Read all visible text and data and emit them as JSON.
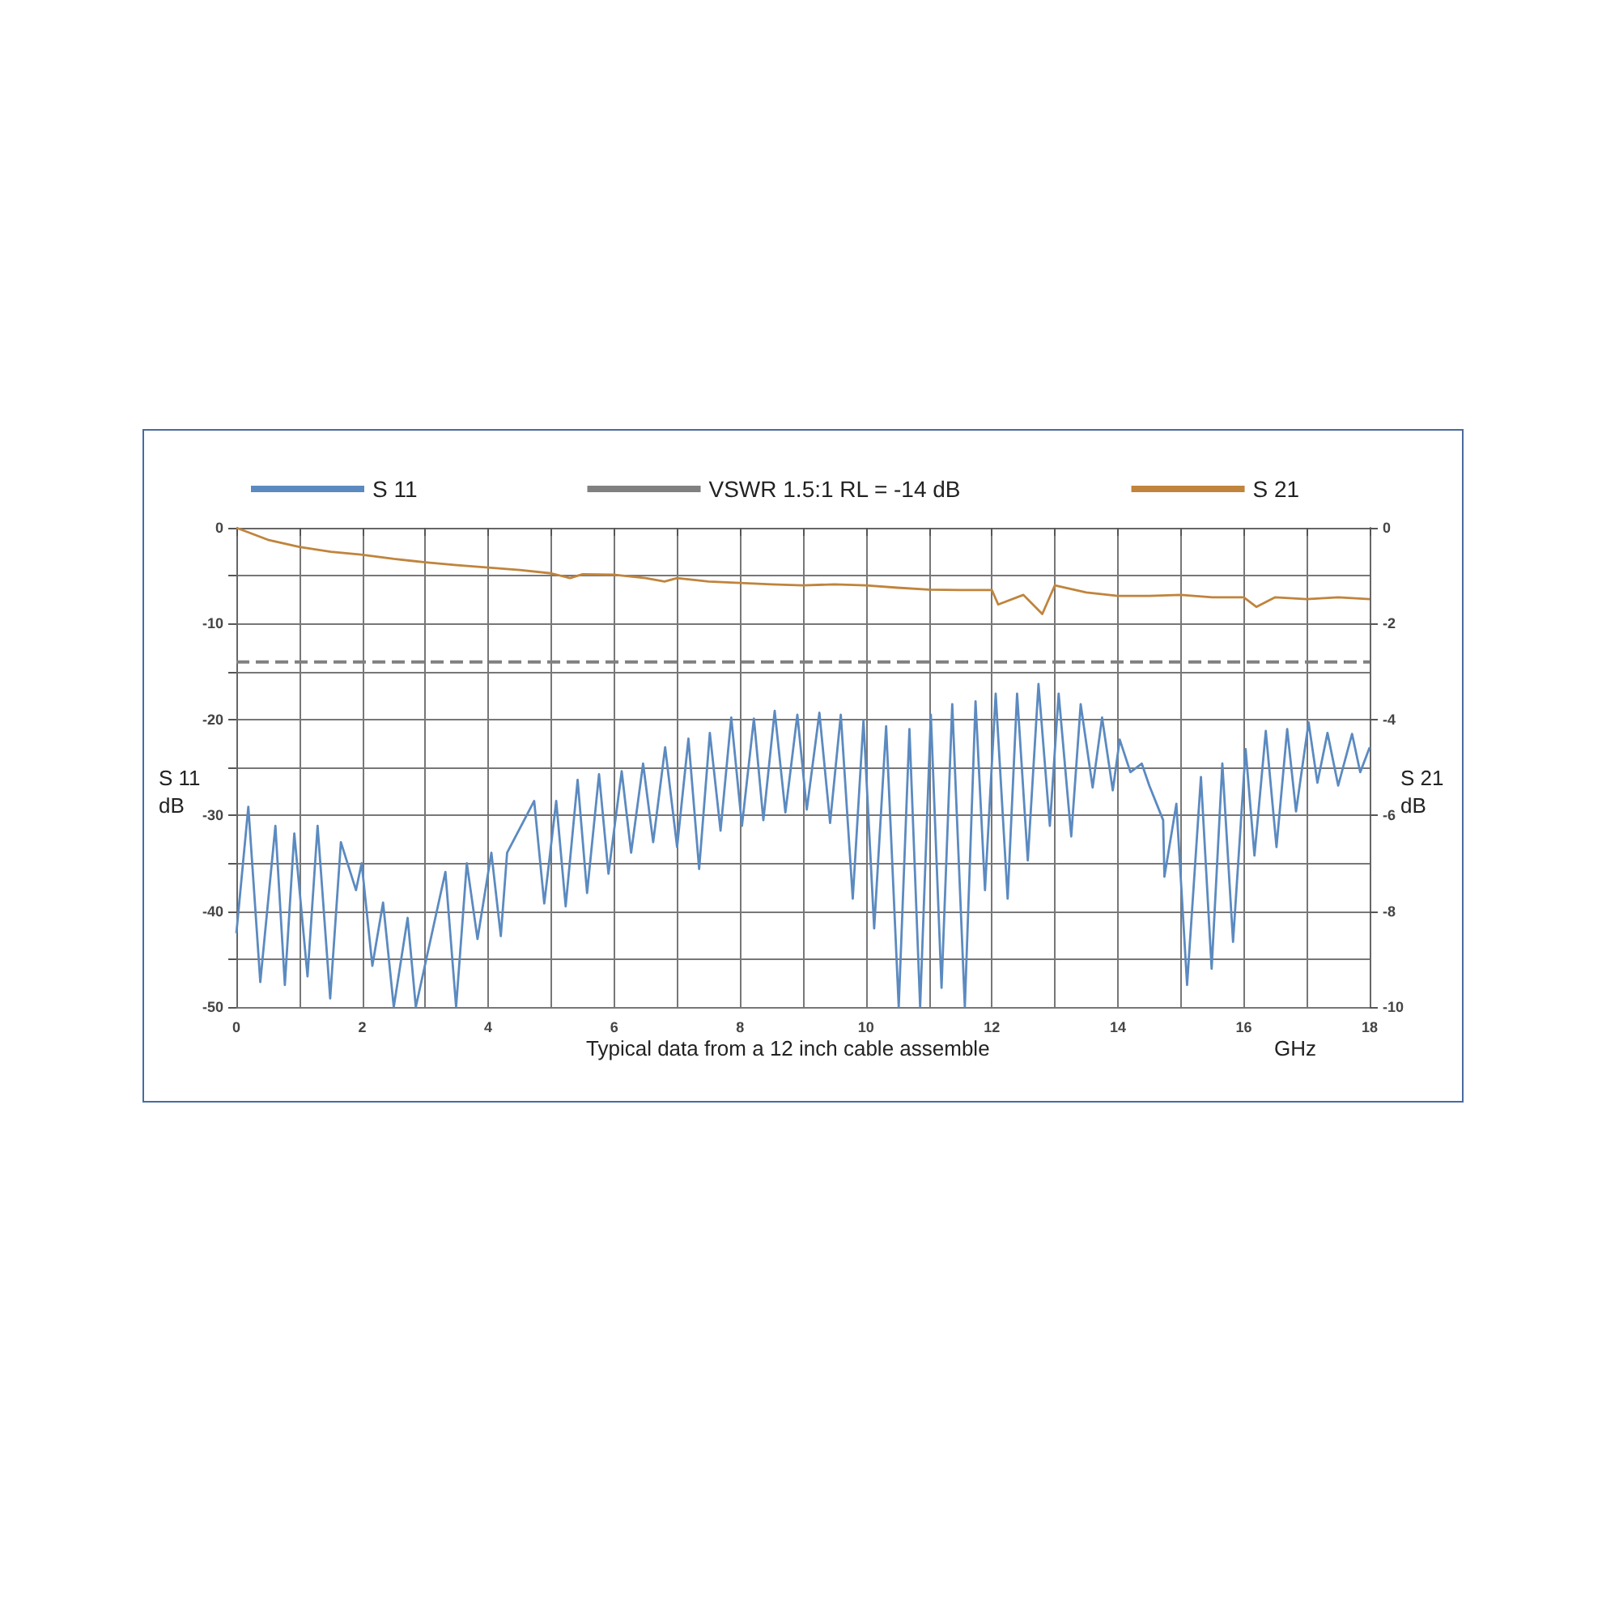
{
  "chart_data": {
    "type": "line",
    "xlabel": "GHz",
    "ylabel": "S 11 dB",
    "y2label": "S 21 dB",
    "annotations": [
      "Typical data from a 12 inch cable assemble"
    ],
    "xlim": [
      0,
      18
    ],
    "xticks": [
      0,
      {
        "value": 1,
        "label": null
      },
      2,
      {
        "value": 3,
        "label": null
      },
      4,
      {
        "value": 5,
        "label": null
      },
      6,
      {
        "value": 7,
        "label": null
      },
      8,
      {
        "value": 9,
        "label": null
      },
      10,
      {
        "value": 11,
        "label": null
      },
      12,
      {
        "value": 13,
        "label": null
      },
      14,
      {
        "value": 15,
        "label": null
      },
      16,
      {
        "value": 17,
        "label": null
      },
      18
    ],
    "ylim": [
      -50,
      0
    ],
    "yticks": [
      -50,
      {
        "value": -45,
        "label": null
      },
      -40,
      {
        "value": -35,
        "label": null
      },
      -30,
      {
        "value": -25,
        "label": null
      },
      -20,
      {
        "value": -15,
        "label": null
      },
      -10,
      {
        "value": -5,
        "label": null
      },
      0
    ],
    "y2lim": [
      -10,
      0
    ],
    "y2ticks": [
      -10,
      -8,
      -6,
      -4,
      -2,
      0
    ],
    "grid": true,
    "legend": "top",
    "marker": "none",
    "line_style": "solid",
    "ref_lines": [
      {
        "axis": "y",
        "value": -14,
        "label": "VSWR 1.5:1 RL = -14 dB",
        "color": "#808080",
        "line_style": "dashed"
      }
    ],
    "series": [
      {
        "name": "S 11",
        "color": "#5b8ac0",
        "x": [
          0,
          0.19,
          0.38,
          0.62,
          0.77,
          0.92,
          1.13,
          1.29,
          1.49,
          1.66,
          1.9,
          1.99,
          2.16,
          2.33,
          2.5,
          2.72,
          2.85,
          3.32,
          3.49,
          3.66,
          3.83,
          4.05,
          4.2,
          4.3,
          4.73,
          4.89,
          5.08,
          5.23,
          5.42,
          5.57,
          5.76,
          5.91,
          6.12,
          6.27,
          6.46,
          6.62,
          6.81,
          7.0,
          7.18,
          7.35,
          7.52,
          7.69,
          7.86,
          8.03,
          8.22,
          8.37,
          8.55,
          8.72,
          8.91,
          9.06,
          9.26,
          9.43,
          9.6,
          9.79,
          9.96,
          10.13,
          10.32,
          10.52,
          10.69,
          10.86,
          11.03,
          11.2,
          11.37,
          11.57,
          11.74,
          11.89,
          12.06,
          12.25,
          12.4,
          12.57,
          12.74,
          12.92,
          13.06,
          13.26,
          13.41,
          13.6,
          13.75,
          13.92,
          14.03,
          14.2,
          14.38,
          14.5,
          14.72,
          14.74,
          14.93,
          15.1,
          15.32,
          15.49,
          15.66,
          15.83,
          16.03,
          16.17,
          16.35,
          16.52,
          16.69,
          16.83,
          17.03,
          17.17,
          17.33,
          17.5,
          17.72,
          17.85,
          18.0
        ],
        "values": [
          -42.3,
          -29.1,
          -47.4,
          -31.1,
          -47.7,
          -31.9,
          -46.8,
          -31.1,
          -49.1,
          -32.8,
          -37.8,
          -35.0,
          -45.7,
          -39.1,
          -50,
          -40.7,
          -50,
          -35.9,
          -50,
          -35.0,
          -42.9,
          -33.9,
          -42.6,
          -33.9,
          -28.5,
          -39.2,
          -28.5,
          -39.5,
          -26.3,
          -38.1,
          -25.7,
          -36.1,
          -25.4,
          -33.9,
          -24.6,
          -32.8,
          -22.9,
          -33.3,
          -22.0,
          -35.6,
          -21.4,
          -31.6,
          -19.8,
          -31.1,
          -19.9,
          -30.5,
          -19.1,
          -29.7,
          -19.5,
          -29.4,
          -19.3,
          -30.8,
          -19.5,
          -38.7,
          -20.1,
          -41.8,
          -20.7,
          -50,
          -21.0,
          -50,
          -19.5,
          -48,
          -18.4,
          -50,
          -18.1,
          -37.8,
          -17.3,
          -38.7,
          -17.3,
          -34.7,
          -16.3,
          -31.1,
          -17.3,
          -32.2,
          -18.4,
          -27.1,
          -19.8,
          -27.4,
          -22.1,
          -25.5,
          -24.6,
          -26.9,
          -30.5,
          -36.4,
          -28.8,
          -47.7,
          -26.0,
          -46.0,
          -24.6,
          -43.2,
          -23.1,
          -34.2,
          -21.2,
          -33.3,
          -21.0,
          -29.6,
          -20.3,
          -26.6,
          -21.4,
          -26.9,
          -21.5,
          -25.5,
          -22.9
        ]
      },
      {
        "name": "S 21",
        "color": "#c0843c",
        "axis": "y2",
        "x": [
          0,
          0.5,
          1,
          1.5,
          1.98,
          2.5,
          3,
          3.5,
          4,
          4.5,
          5,
          5.3,
          5.5,
          6,
          6.5,
          6.8,
          7,
          7.5,
          8,
          8.5,
          9,
          9.5,
          10,
          10.5,
          11,
          11.5,
          12,
          12.1,
          12.5,
          12.8,
          13,
          13.5,
          14,
          14.5,
          15,
          15.5,
          16,
          16.2,
          16.5,
          17,
          17.5,
          18
        ],
        "values": [
          0,
          -0.25,
          -0.4,
          -0.5,
          -0.56,
          -0.65,
          -0.72,
          -0.78,
          -0.83,
          -0.88,
          -0.95,
          -1.05,
          -0.97,
          -0.98,
          -1.05,
          -1.12,
          -1.05,
          -1.12,
          -1.15,
          -1.18,
          -1.2,
          -1.18,
          -1.2,
          -1.25,
          -1.29,
          -1.3,
          -1.3,
          -1.6,
          -1.4,
          -1.8,
          -1.2,
          -1.35,
          -1.42,
          -1.42,
          -1.4,
          -1.45,
          -1.45,
          -1.65,
          -1.45,
          -1.49,
          -1.45,
          -1.49
        ]
      }
    ]
  }
}
